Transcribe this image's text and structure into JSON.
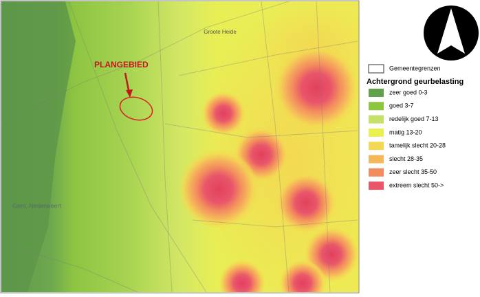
{
  "map": {
    "plangebied": "PLANGEBIED",
    "labels": [
      "Groote Heide",
      "Gem. Nederweert"
    ]
  },
  "legend": {
    "boundary": "Gemeentegrenzen",
    "title": "Achtergrond geurbelasting",
    "items": [
      {
        "label": "zeer goed 0-3",
        "color": "#62a04c"
      },
      {
        "label": "goed 3-7",
        "color": "#8cc63e"
      },
      {
        "label": "redelijk goed 7-13",
        "color": "#c6e06c"
      },
      {
        "label": "matig 13-20",
        "color": "#e9f050"
      },
      {
        "label": "tamelijk slecht 20-28",
        "color": "#f3d952"
      },
      {
        "label": "slecht 28-35",
        "color": "#f6b95a"
      },
      {
        "label": "zeer slecht 35-50",
        "color": "#f28c5e"
      },
      {
        "label": "extreem slecht 50->",
        "color": "#e9566a"
      }
    ]
  }
}
